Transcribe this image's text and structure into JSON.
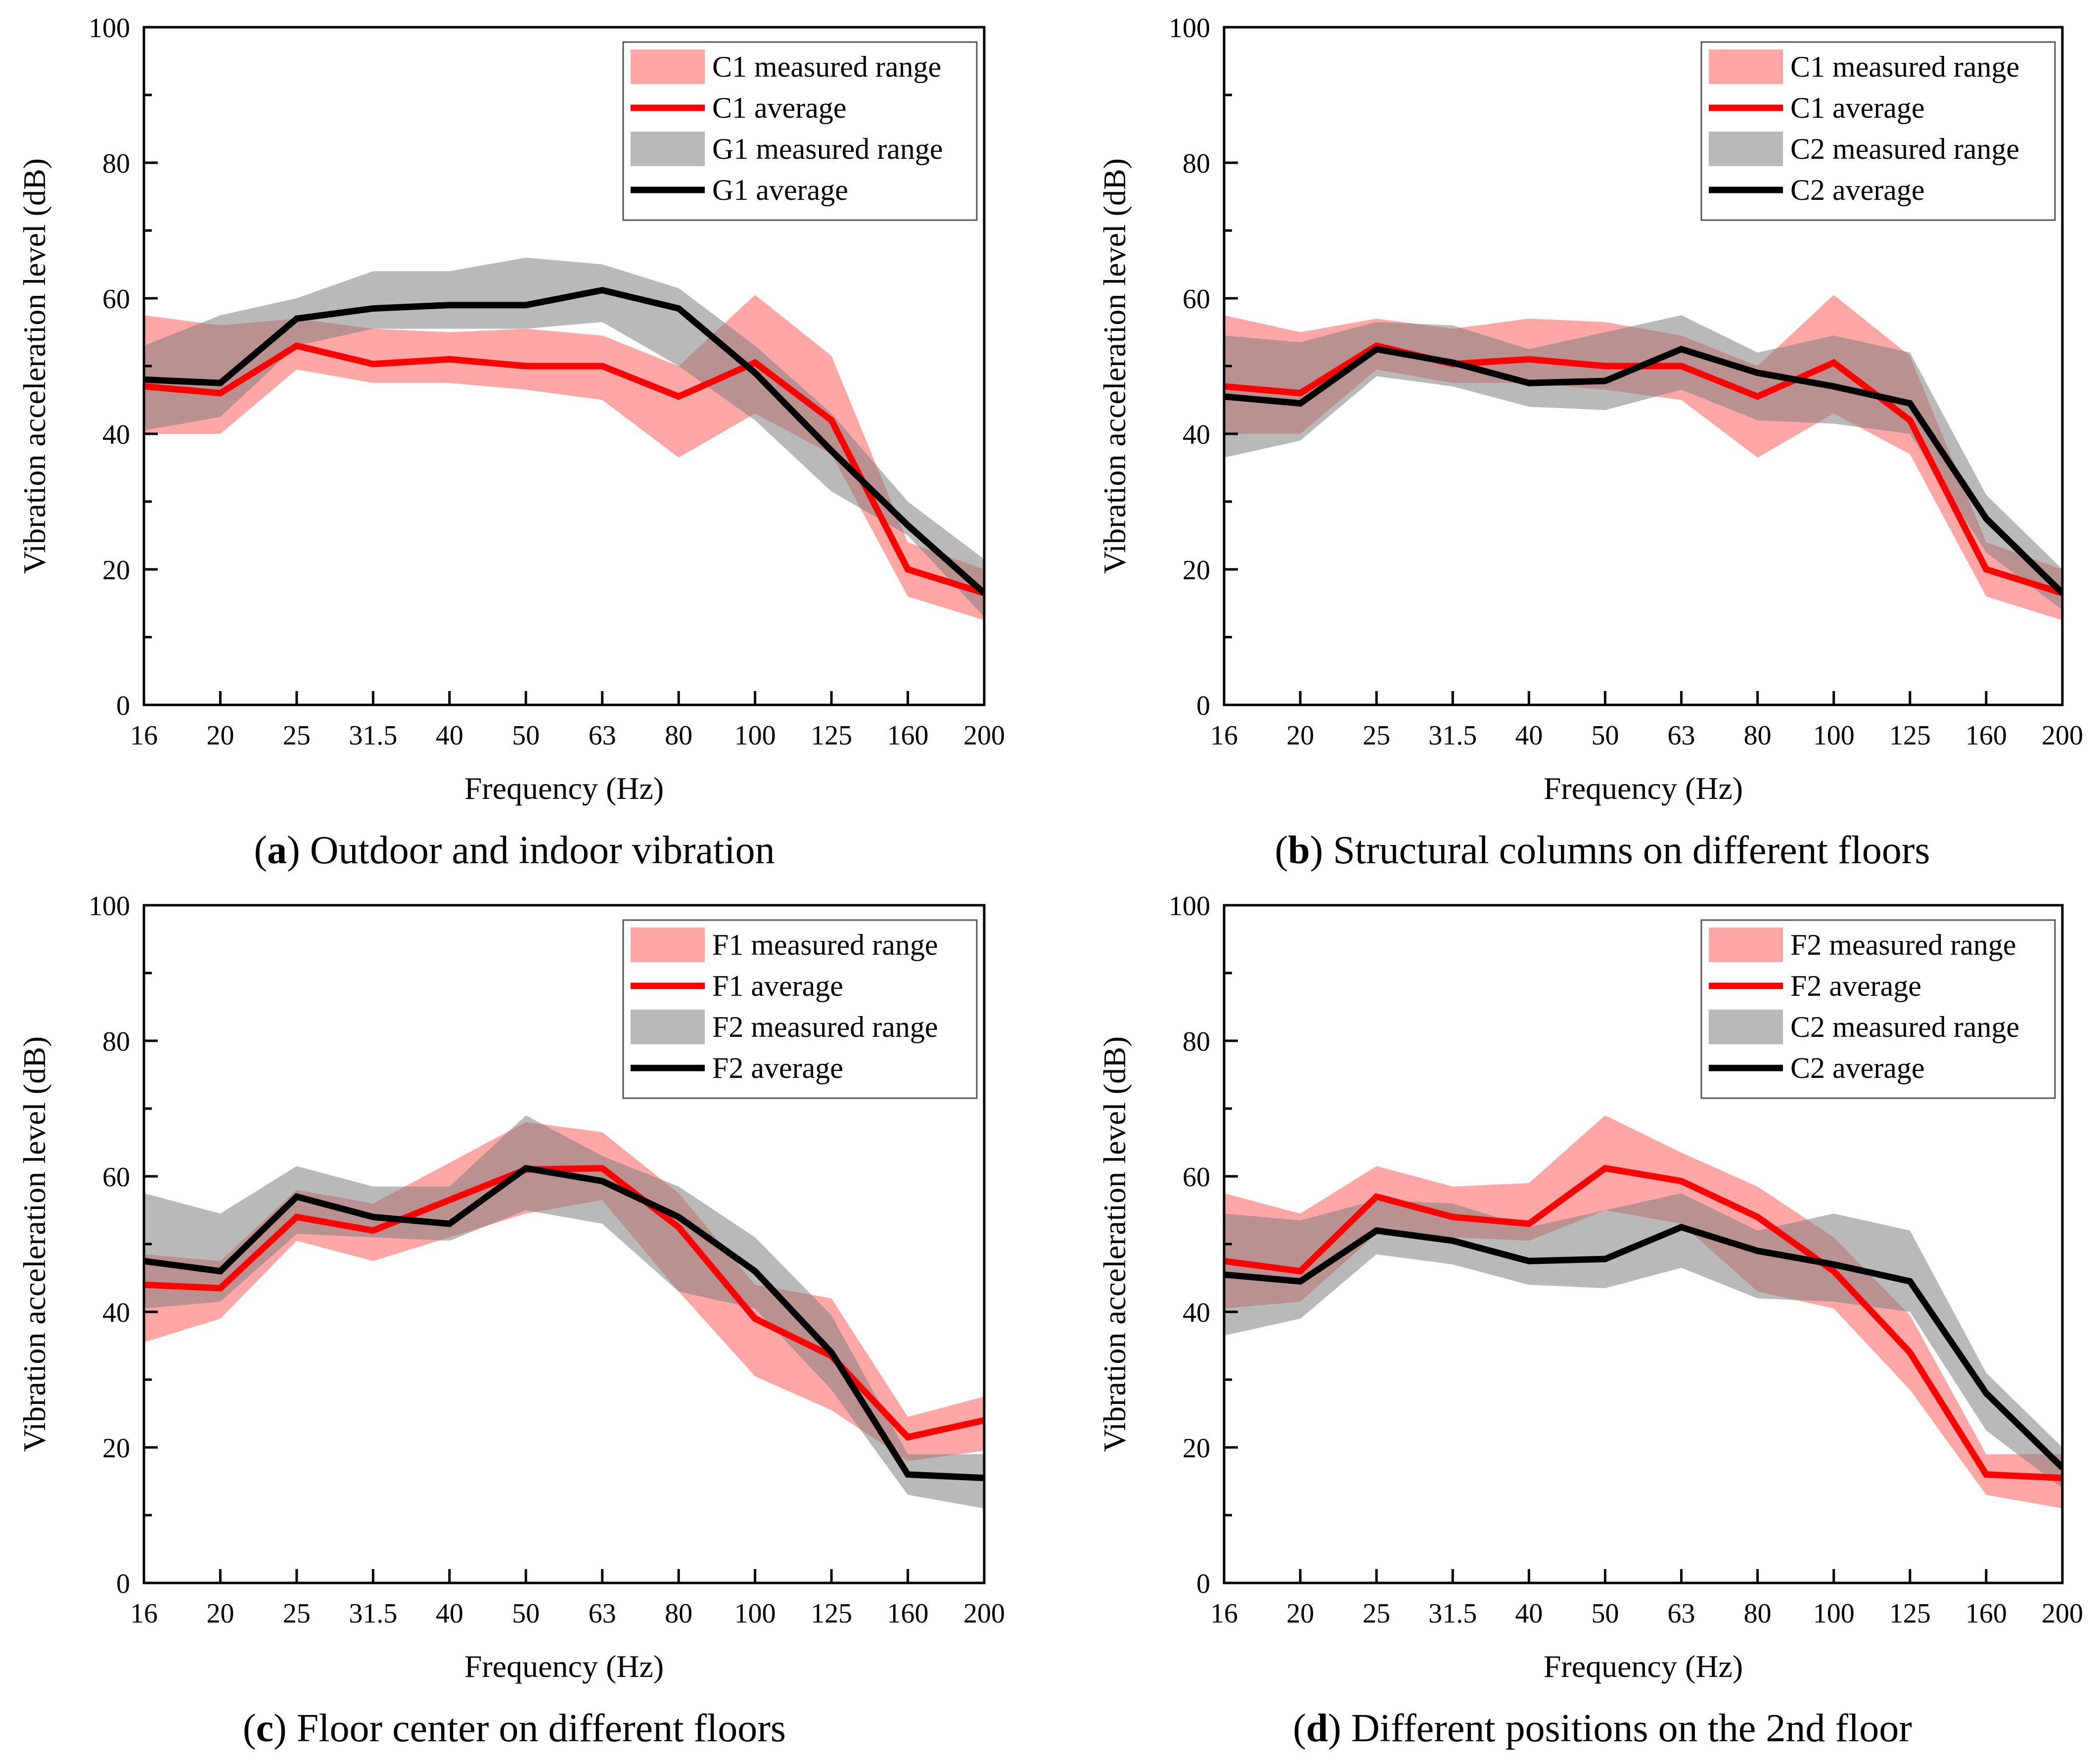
{
  "colors": {
    "red_line": "#ff0000",
    "red_band": "#ff6b6b",
    "black_line": "#000000",
    "gray_band": "#7f7f7f",
    "axis": "#000000"
  },
  "chart_data": [
    {
      "type": "line",
      "panel_letter": "a",
      "caption": "Outdoor and indoor vibration",
      "xlabel": "Frequency (Hz)",
      "ylabel": "Vibration acceleration level (dB)",
      "categories": [
        "16",
        "20",
        "25",
        "31.5",
        "40",
        "50",
        "63",
        "80",
        "100",
        "125",
        "160",
        "200"
      ],
      "ylim": [
        0,
        100
      ],
      "yticks": [
        0,
        20,
        40,
        60,
        80,
        100
      ],
      "legend_position": "top-right",
      "series": [
        {
          "name": "C1 average",
          "band_name": "C1 measured range",
          "color": "red",
          "values": [
            47,
            46,
            53,
            50.3,
            51,
            50,
            50,
            45.5,
            50.5,
            42,
            20,
            16.5
          ],
          "low": [
            40,
            40,
            49.5,
            47.5,
            47.5,
            46.5,
            45,
            36.5,
            43,
            37,
            16,
            12.5
          ],
          "high": [
            57.5,
            56,
            57,
            55.5,
            55,
            55.5,
            54.5,
            50,
            60.5,
            51.5,
            24,
            20
          ]
        },
        {
          "name": "G1 average",
          "band_name": "G1 measured range",
          "color": "black",
          "values": [
            48,
            47.5,
            57,
            58.5,
            59,
            59,
            61.2,
            58.5,
            49,
            37.5,
            26.5,
            16.5
          ],
          "low": [
            40.5,
            42.5,
            53,
            55.5,
            55.5,
            55.5,
            56.5,
            50,
            42,
            31.5,
            25,
            13
          ],
          "high": [
            53,
            57.5,
            60,
            64,
            64,
            66,
            65,
            61.5,
            53,
            43,
            30,
            21.5
          ]
        }
      ]
    },
    {
      "type": "line",
      "panel_letter": "b",
      "caption": "Structural columns on different floors",
      "xlabel": "Frequency (Hz)",
      "ylabel": "Vibration acceleration level (dB)",
      "categories": [
        "16",
        "20",
        "25",
        "31.5",
        "40",
        "50",
        "63",
        "80",
        "100",
        "125",
        "160",
        "200"
      ],
      "ylim": [
        0,
        100
      ],
      "yticks": [
        0,
        20,
        40,
        60,
        80,
        100
      ],
      "legend_position": "top-right",
      "series": [
        {
          "name": "C1 average",
          "band_name": "C1 measured range",
          "color": "red",
          "values": [
            47,
            46,
            53,
            50.3,
            51,
            50,
            50,
            45.5,
            50.5,
            42,
            20,
            16.5
          ],
          "low": [
            40,
            40,
            49.5,
            47.5,
            47.5,
            46.5,
            45,
            36.5,
            43,
            37,
            16,
            12.5
          ],
          "high": [
            57.5,
            55,
            57,
            55.5,
            57,
            56.5,
            54.5,
            50,
            60.5,
            51.5,
            24,
            20
          ]
        },
        {
          "name": "C2 average",
          "band_name": "C2 measured range",
          "color": "black",
          "values": [
            45.5,
            44.5,
            52.5,
            50.5,
            47.5,
            47.8,
            52.5,
            49,
            47,
            44.5,
            27.5,
            16.5
          ],
          "low": [
            36.5,
            39,
            48.5,
            47,
            44,
            43.5,
            46.5,
            42,
            41.5,
            40,
            22.5,
            14
          ],
          "high": [
            54.5,
            53.5,
            56.5,
            56,
            52.5,
            55,
            57.5,
            52,
            54.5,
            52,
            31,
            20
          ]
        }
      ]
    },
    {
      "type": "line",
      "panel_letter": "c",
      "caption": "Floor center on different floors",
      "xlabel": "Frequency (Hz)",
      "ylabel": "Vibration acceleration level (dB)",
      "categories": [
        "16",
        "20",
        "25",
        "31.5",
        "40",
        "50",
        "63",
        "80",
        "100",
        "125",
        "160",
        "200"
      ],
      "ylim": [
        0,
        100
      ],
      "yticks": [
        0,
        20,
        40,
        60,
        80,
        100
      ],
      "legend_position": "top-right",
      "series": [
        {
          "name": "F1 average",
          "band_name": "F1 measured range",
          "color": "red",
          "values": [
            44,
            43.5,
            54,
            52,
            56.5,
            61,
            61.2,
            52.5,
            39,
            33.5,
            21.5,
            24
          ],
          "low": [
            35.5,
            39,
            50.5,
            47.5,
            51,
            54.5,
            56.5,
            43,
            30.5,
            25.5,
            18,
            19.5
          ],
          "high": [
            48.5,
            47.5,
            58,
            56,
            62,
            68,
            66.5,
            57.5,
            44,
            42,
            24.5,
            27.5
          ]
        },
        {
          "name": "F2 average",
          "band_name": "F2 measured range",
          "color": "black",
          "values": [
            47.5,
            46,
            57,
            54,
            53,
            61.2,
            59.3,
            54,
            46,
            34,
            16,
            15.5
          ],
          "low": [
            40.5,
            41.5,
            51.5,
            51,
            50.5,
            55,
            53,
            43,
            40.5,
            28.5,
            13,
            11
          ],
          "high": [
            57.5,
            54.5,
            61.5,
            58.5,
            58.5,
            69,
            63,
            58.5,
            51,
            39.5,
            19,
            19
          ]
        }
      ]
    },
    {
      "type": "line",
      "panel_letter": "d",
      "caption": "Different positions on the 2nd floor",
      "xlabel": "Frequency (Hz)",
      "ylabel": "Vibration acceleration level (dB)",
      "categories": [
        "16",
        "20",
        "25",
        "31.5",
        "40",
        "50",
        "63",
        "80",
        "100",
        "125",
        "160",
        "200"
      ],
      "ylim": [
        0,
        100
      ],
      "yticks": [
        0,
        20,
        40,
        60,
        80,
        100
      ],
      "legend_position": "top-right",
      "series": [
        {
          "name": "F2 average",
          "band_name": "F2 measured range",
          "color": "red",
          "values": [
            47.5,
            46,
            57,
            54,
            53,
            61.2,
            59.3,
            54,
            46,
            34,
            16,
            15.5
          ],
          "low": [
            40.5,
            41.5,
            51.5,
            51,
            50.5,
            55,
            53,
            43,
            40.5,
            28.5,
            13,
            11
          ],
          "high": [
            57.5,
            54.5,
            61.5,
            58.5,
            59,
            69,
            63.5,
            58.5,
            51,
            39.5,
            19,
            19
          ]
        },
        {
          "name": "C2 average",
          "band_name": "C2 measured range",
          "color": "black",
          "values": [
            45.5,
            44.5,
            52,
            50.5,
            47.5,
            47.8,
            52.5,
            49,
            47,
            44.5,
            28,
            17
          ],
          "low": [
            36.5,
            39,
            48.5,
            47,
            44,
            43.5,
            46.5,
            42,
            41.5,
            40,
            22.5,
            14
          ],
          "high": [
            54.5,
            53.5,
            56.5,
            56,
            52.5,
            55,
            57.5,
            52,
            54.5,
            52,
            31,
            20
          ]
        }
      ]
    }
  ]
}
